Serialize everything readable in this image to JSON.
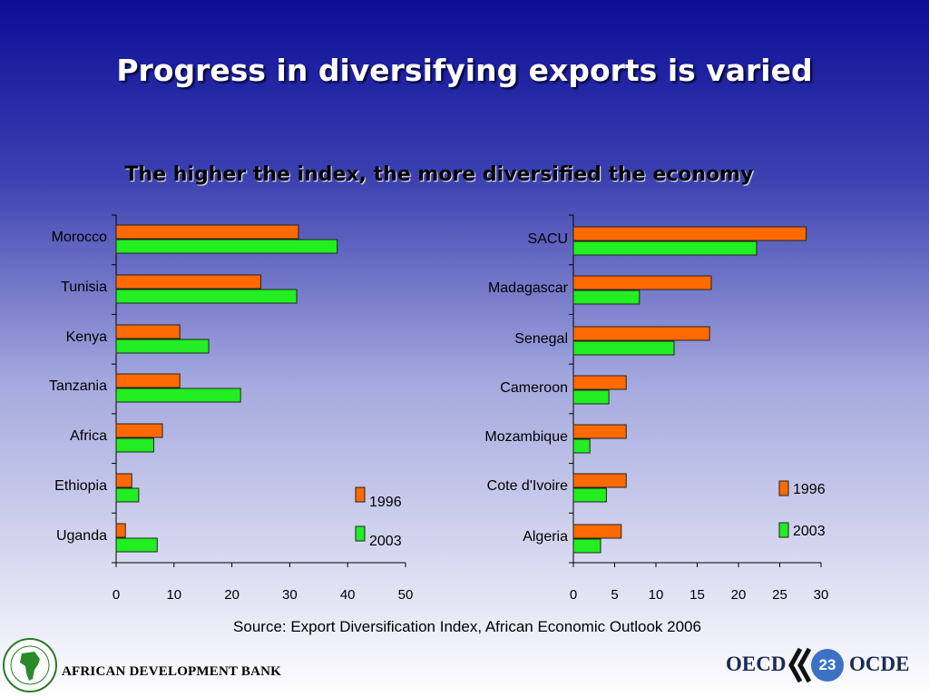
{
  "title": "Progress in diversifying exports is varied",
  "subtitle": "The higher the index, the more diversified the economy",
  "source": "Source: Export Diversification Index, African Economic Outlook 2006",
  "footer": {
    "bank": "AFRICAN DEVELOPMENT BANK",
    "oecd_left": "OECD",
    "oecd_right": "OCDE",
    "page": "23"
  },
  "colors": {
    "s1996": "#ff6a00",
    "s2003": "#22ee22",
    "axis": "#000000"
  },
  "chart_data": [
    {
      "type": "bar",
      "orientation": "horizontal",
      "categories": [
        "Morocco",
        "Tunisia",
        "Kenya",
        "Tanzania",
        "Africa",
        "Ethiopia",
        "Uganda"
      ],
      "series": [
        {
          "name": "1996",
          "values": [
            31.5,
            25.0,
            11.0,
            11.0,
            8.0,
            2.7,
            1.6
          ]
        },
        {
          "name": "2003",
          "values": [
            38.2,
            31.2,
            16.0,
            21.5,
            6.5,
            3.9,
            7.1
          ]
        }
      ],
      "xlim": [
        0,
        50
      ],
      "xticks": [
        0,
        10,
        20,
        30,
        40,
        50
      ],
      "legend": "bottom-right"
    },
    {
      "type": "bar",
      "orientation": "horizontal",
      "categories": [
        "SACU",
        "Madagascar",
        "Senegal",
        "Cameroon",
        "Mozambique",
        "Cote d'Ivoire",
        "Algeria"
      ],
      "series": [
        {
          "name": "1996",
          "values": [
            28.2,
            16.7,
            16.5,
            6.4,
            6.4,
            6.4,
            5.8
          ]
        },
        {
          "name": "2003",
          "values": [
            22.2,
            8.0,
            12.2,
            4.3,
            2.0,
            4.0,
            3.3
          ]
        }
      ],
      "xlim": [
        0,
        30
      ],
      "xticks": [
        0,
        5,
        10,
        15,
        20,
        25,
        30
      ],
      "legend": "bottom-right"
    }
  ]
}
